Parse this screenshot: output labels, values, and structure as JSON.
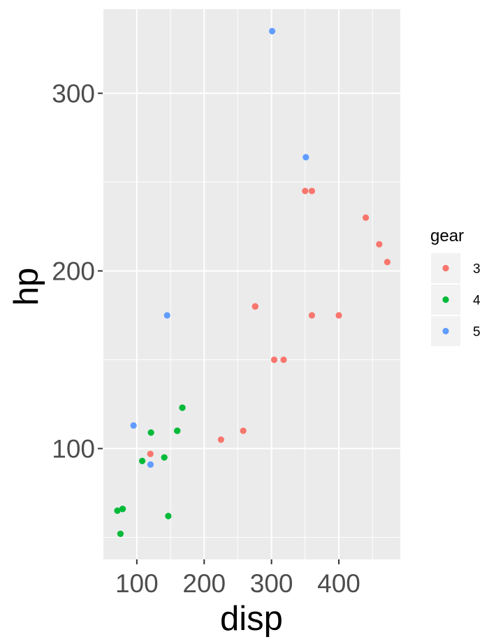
{
  "chart_data": {
    "type": "scatter",
    "title": "",
    "xlabel": "disp",
    "ylabel": "hp",
    "xlim": [
      49.3,
      491.3
    ],
    "ylim": [
      37.6,
      347.4
    ],
    "x_ticks": [
      100,
      200,
      300,
      400
    ],
    "y_ticks": [
      100,
      200,
      300
    ],
    "grid": true,
    "legend": {
      "title": "gear",
      "position": "right"
    },
    "series": [
      {
        "name": "3",
        "color": "#F8766D",
        "points": [
          {
            "x": 258,
            "y": 110
          },
          {
            "x": 360,
            "y": 175
          },
          {
            "x": 225,
            "y": 105
          },
          {
            "x": 360,
            "y": 245
          },
          {
            "x": 275.8,
            "y": 180
          },
          {
            "x": 275.8,
            "y": 180
          },
          {
            "x": 275.8,
            "y": 180
          },
          {
            "x": 472,
            "y": 205
          },
          {
            "x": 460,
            "y": 215
          },
          {
            "x": 440,
            "y": 230
          },
          {
            "x": 120.1,
            "y": 97
          },
          {
            "x": 318,
            "y": 150
          },
          {
            "x": 304,
            "y": 150
          },
          {
            "x": 350,
            "y": 245
          },
          {
            "x": 400,
            "y": 175
          }
        ]
      },
      {
        "name": "4",
        "color": "#00BA38",
        "points": [
          {
            "x": 160,
            "y": 110
          },
          {
            "x": 160,
            "y": 110
          },
          {
            "x": 108,
            "y": 93
          },
          {
            "x": 146.7,
            "y": 62
          },
          {
            "x": 140.8,
            "y": 95
          },
          {
            "x": 167.6,
            "y": 123
          },
          {
            "x": 167.6,
            "y": 123
          },
          {
            "x": 78.7,
            "y": 66
          },
          {
            "x": 75.7,
            "y": 52
          },
          {
            "x": 71.1,
            "y": 65
          },
          {
            "x": 79,
            "y": 66
          },
          {
            "x": 121,
            "y": 109
          }
        ]
      },
      {
        "name": "5",
        "color": "#619CFF",
        "points": [
          {
            "x": 120.3,
            "y": 91
          },
          {
            "x": 95.1,
            "y": 113
          },
          {
            "x": 351,
            "y": 264
          },
          {
            "x": 145,
            "y": 175
          },
          {
            "x": 301,
            "y": 335
          }
        ]
      }
    ]
  }
}
